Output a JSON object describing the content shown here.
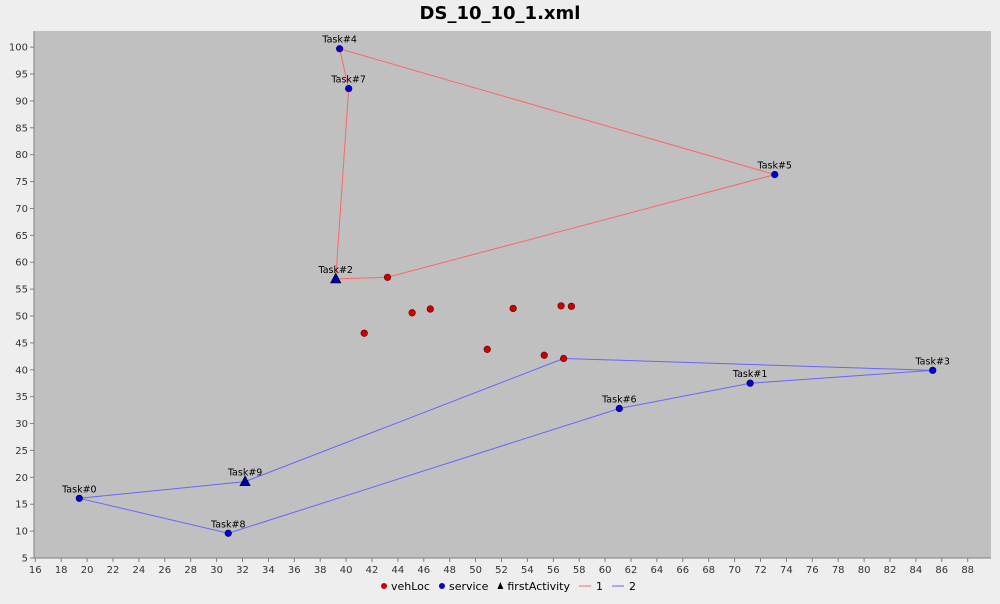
{
  "chart_data": {
    "type": "scatter",
    "title": "DS_10_10_1.xml",
    "xlabel": "",
    "ylabel": "",
    "xlim": [
      15.9,
      89.8
    ],
    "ylim": [
      5,
      103
    ],
    "x_ticks": [
      16,
      18,
      20,
      22,
      24,
      26,
      28,
      30,
      32,
      34,
      36,
      38,
      40,
      42,
      44,
      46,
      48,
      50,
      52,
      54,
      56,
      58,
      60,
      62,
      64,
      66,
      68,
      70,
      72,
      74,
      76,
      78,
      80,
      82,
      84,
      86,
      88
    ],
    "y_ticks": [
      5,
      10,
      15,
      20,
      25,
      30,
      35,
      40,
      45,
      50,
      55,
      60,
      65,
      70,
      75,
      80,
      85,
      90,
      95,
      100
    ],
    "grid": false,
    "plot_background": "#c0c0c0",
    "legend_position": "bottom-center",
    "legend": [
      {
        "label": "vehLoc",
        "marker": "circle",
        "color": "#cc0000"
      },
      {
        "label": "service",
        "marker": "circle",
        "color": "#0000cc"
      },
      {
        "label": "firstActivity",
        "marker": "triangle",
        "color": "#000000"
      },
      {
        "label": "1",
        "marker": "line",
        "color": "#ff6666"
      },
      {
        "label": "2",
        "marker": "line",
        "color": "#6666ff"
      }
    ],
    "vehLoc": [
      {
        "x": 41.4,
        "y": 46.8
      },
      {
        "x": 43.2,
        "y": 57.2
      },
      {
        "x": 45.1,
        "y": 50.6
      },
      {
        "x": 46.5,
        "y": 51.3
      },
      {
        "x": 50.9,
        "y": 43.8
      },
      {
        "x": 52.9,
        "y": 51.4
      },
      {
        "x": 55.3,
        "y": 42.7
      },
      {
        "x": 56.6,
        "y": 51.9
      },
      {
        "x": 56.8,
        "y": 42.1
      },
      {
        "x": 57.4,
        "y": 51.8
      }
    ],
    "service": [
      {
        "label": "Task#0",
        "x": 19.4,
        "y": 16.1
      },
      {
        "label": "Task#1",
        "x": 71.2,
        "y": 37.5
      },
      {
        "label": "Task#2",
        "x": 39.2,
        "y": 56.9
      },
      {
        "label": "Task#3",
        "x": 85.3,
        "y": 39.9
      },
      {
        "label": "Task#4",
        "x": 39.5,
        "y": 99.7
      },
      {
        "label": "Task#5",
        "x": 73.1,
        "y": 76.3
      },
      {
        "label": "Task#6",
        "x": 61.1,
        "y": 32.8
      },
      {
        "label": "Task#7",
        "x": 40.2,
        "y": 92.3
      },
      {
        "label": "Task#8",
        "x": 30.9,
        "y": 9.6
      },
      {
        "label": "Task#9",
        "x": 32.2,
        "y": 19.2
      }
    ],
    "firstActivity": [
      {
        "x": 39.2,
        "y": 56.9
      },
      {
        "x": 32.2,
        "y": 19.2
      }
    ],
    "series": [
      {
        "name": "1",
        "color": "#ff6666",
        "points": [
          {
            "x": 43.2,
            "y": 57.2
          },
          {
            "x": 39.2,
            "y": 56.9
          },
          {
            "x": 40.2,
            "y": 92.3
          },
          {
            "x": 39.5,
            "y": 99.7
          },
          {
            "x": 73.1,
            "y": 76.3
          },
          {
            "x": 43.2,
            "y": 57.2
          }
        ]
      },
      {
        "name": "2",
        "color": "#6666ff",
        "points": [
          {
            "x": 56.8,
            "y": 42.1
          },
          {
            "x": 32.2,
            "y": 19.2
          },
          {
            "x": 19.4,
            "y": 16.1
          },
          {
            "x": 30.9,
            "y": 9.6
          },
          {
            "x": 61.1,
            "y": 32.8
          },
          {
            "x": 71.2,
            "y": 37.5
          },
          {
            "x": 85.3,
            "y": 39.9
          },
          {
            "x": 56.8,
            "y": 42.1
          }
        ]
      }
    ]
  }
}
